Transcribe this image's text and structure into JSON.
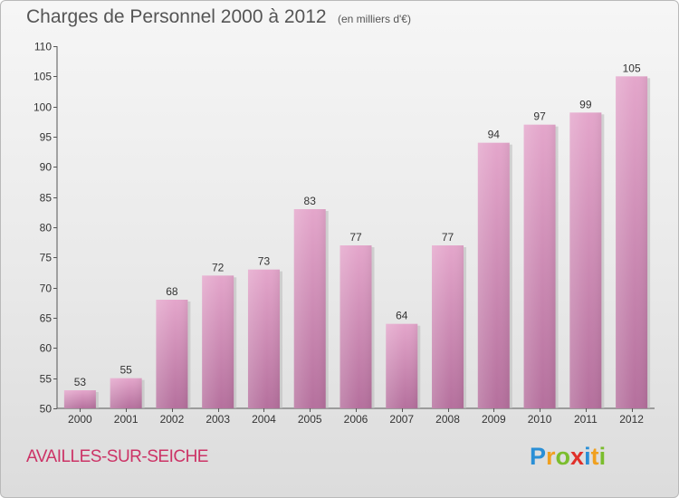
{
  "chart_data": {
    "type": "bar",
    "title": "Charges de Personnel 2000 à 2012",
    "subtitle": "(en milliers d'€)",
    "categories": [
      "2000",
      "2001",
      "2002",
      "2003",
      "2004",
      "2005",
      "2006",
      "2007",
      "2008",
      "2009",
      "2010",
      "2011",
      "2012"
    ],
    "values": [
      53,
      55,
      68,
      72,
      73,
      83,
      77,
      64,
      77,
      94,
      97,
      99,
      105
    ],
    "ylim": [
      50,
      110
    ],
    "yticks": [
      50,
      55,
      60,
      65,
      70,
      75,
      80,
      85,
      90,
      95,
      100,
      105,
      110
    ],
    "grid": false,
    "legend": "none",
    "bar_color": "#d98fb8"
  },
  "footer": {
    "place": "AVAILLES-SUR-SEICHE",
    "logo_letters": [
      {
        "char": "P",
        "color": "#2a8fd6"
      },
      {
        "char": "r",
        "color": "#f0a020"
      },
      {
        "char": "o",
        "color": "#7bbd2d"
      },
      {
        "char": "x",
        "color": "#e0302a"
      },
      {
        "char": "i",
        "color": "#2a8fd6"
      },
      {
        "char": "t",
        "color": "#f0a020"
      },
      {
        "char": "i",
        "color": "#7bbd2d"
      }
    ]
  }
}
